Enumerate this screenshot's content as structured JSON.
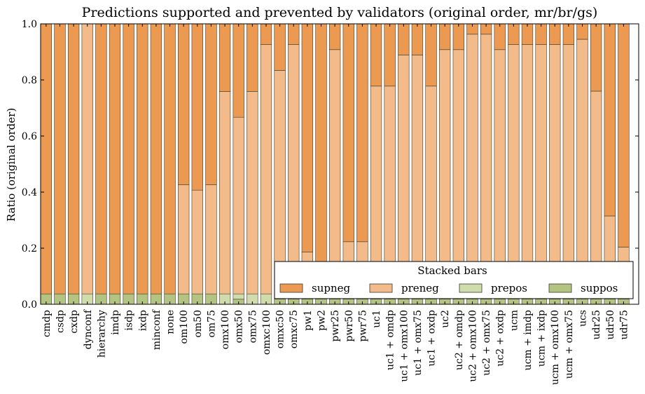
{
  "chart_data": {
    "type": "bar",
    "stacked": true,
    "title": "Predictions supported and prevented by validators (original order, mr/br/gs)",
    "xlabel": "",
    "ylabel": "Ratio (original order)",
    "ylim": [
      0,
      1
    ],
    "yticks": [
      "0.0",
      "0.2",
      "0.4",
      "0.6",
      "0.8",
      "1.0"
    ],
    "grid": false,
    "legend": {
      "title": "Stacked bars",
      "placement": "lower-right",
      "entries": [
        "supneg",
        "preneg",
        "prepos",
        "suppos"
      ]
    },
    "colors": {
      "supneg": "#ec9a52",
      "preneg": "#f4bb8a",
      "prepos": "#d0dcad",
      "suppos": "#b2c382"
    },
    "categories": [
      "cmdp",
      "csdp",
      "cxdp",
      "dynconf",
      "hierarchy",
      "imdp",
      "isdp",
      "ixdp",
      "minconf",
      "none",
      "om100",
      "om50",
      "om75",
      "omx100",
      "omx50",
      "omx75",
      "omxc100",
      "omxc50",
      "omxc75",
      "pw1",
      "pw2",
      "pwr25",
      "pwr50",
      "pwr75",
      "uc1",
      "uc1 + omdp",
      "uc1 + omx100",
      "uc1 + omx75",
      "uc1 + oxdp",
      "uc2",
      "uc2 + omdp",
      "uc2 + omx100",
      "uc2 + omx75",
      "uc2 + oxdp",
      "ucm",
      "ucm + imdp",
      "ucm + ixdp",
      "ucm + omx100",
      "ucm + omx75",
      "ucs",
      "udr25",
      "udr50",
      "udr75"
    ],
    "series": [
      {
        "name": "suppos",
        "values": [
          0.037,
          0.037,
          0.037,
          0,
          0.037,
          0.037,
          0.037,
          0.037,
          0.037,
          0.037,
          0.037,
          0.037,
          0.037,
          0,
          0.018,
          0,
          0,
          0.019,
          0.019,
          0.019,
          0.019,
          0.019,
          0.019,
          0.019,
          0.019,
          0.019,
          0.019,
          0.019,
          0.019,
          0.019,
          0.019,
          0.019,
          0.019,
          0.019,
          0.019,
          0.019,
          0.019,
          0.019,
          0.019,
          0.019,
          0.019,
          0.019,
          0.019
        ]
      },
      {
        "name": "prepos",
        "values": [
          0,
          0,
          0,
          0.037,
          0,
          0,
          0,
          0,
          0,
          0,
          0,
          0,
          0,
          0.037,
          0.019,
          0.037,
          0.037,
          0,
          0,
          0,
          0,
          0,
          0,
          0,
          0,
          0,
          0,
          0,
          0,
          0,
          0,
          0,
          0,
          0,
          0,
          0,
          0,
          0,
          0,
          0,
          0,
          0,
          0
        ]
      },
      {
        "name": "preneg",
        "values": [
          0,
          0,
          0,
          0.963,
          0,
          0,
          0,
          0,
          0,
          0,
          0.389,
          0.37,
          0.389,
          0.722,
          0.63,
          0.722,
          0.889,
          0.815,
          0.907,
          0.167,
          0,
          0.889,
          0.204,
          0.204,
          0.759,
          0.759,
          0.87,
          0.87,
          0.759,
          0.889,
          0.889,
          0.944,
          0.944,
          0.889,
          0.907,
          0.907,
          0.907,
          0.907,
          0.907,
          0.926,
          0.741,
          0.296,
          0.185
        ]
      },
      {
        "name": "supneg",
        "values": [
          0.963,
          0.963,
          0.963,
          0,
          0.963,
          0.963,
          0.963,
          0.963,
          0.963,
          0.963,
          0.574,
          0.593,
          0.574,
          0.241,
          0.333,
          0.241,
          0.074,
          0.166,
          0.074,
          0.814,
          0.981,
          0.092,
          0.777,
          0.777,
          0.222,
          0.222,
          0.111,
          0.111,
          0.222,
          0.092,
          0.092,
          0.037,
          0.037,
          0.092,
          0.074,
          0.074,
          0.074,
          0.074,
          0.074,
          0.055,
          0.24,
          0.685,
          0.796
        ]
      }
    ]
  }
}
